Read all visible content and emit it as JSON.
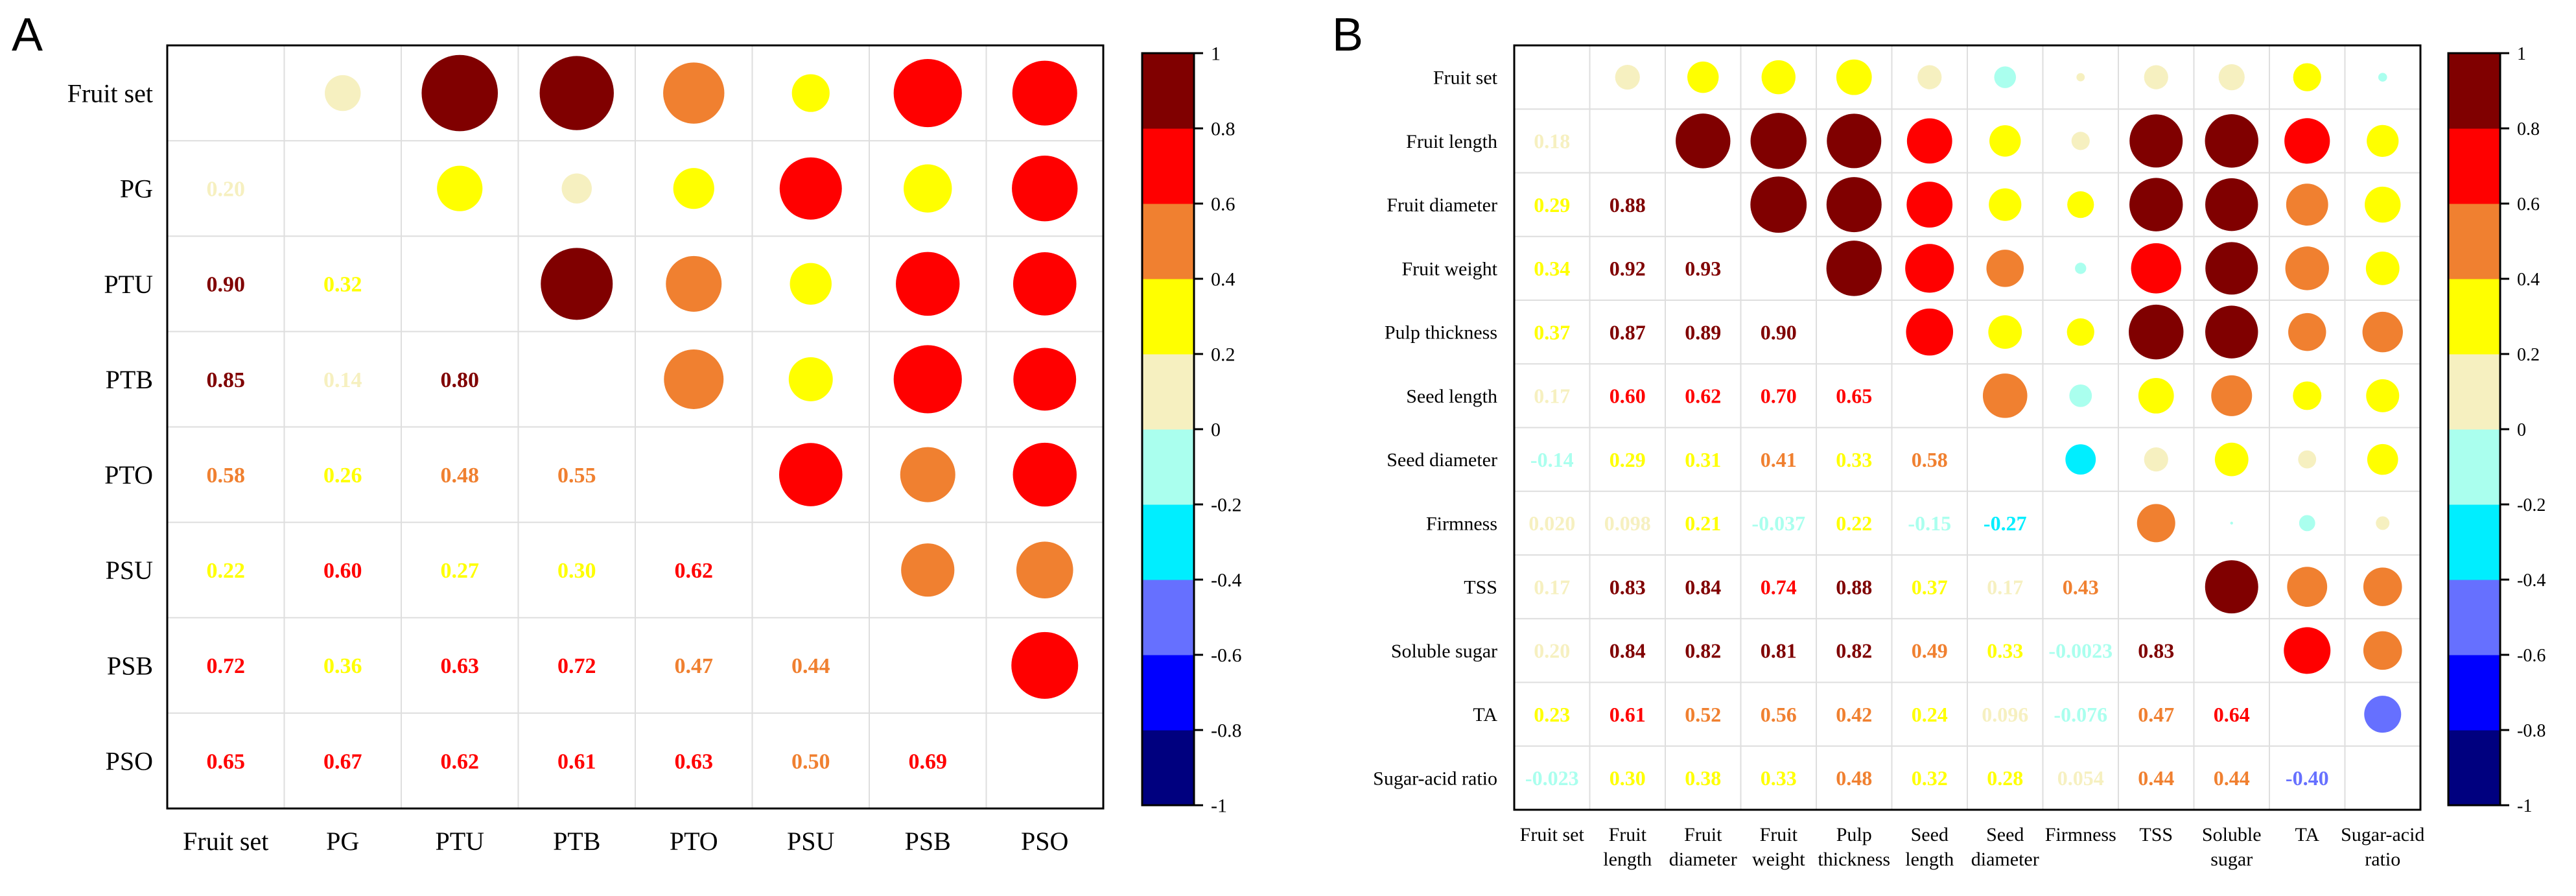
{
  "chart_data": [
    {
      "type": "heatmap",
      "panel": "A",
      "variables": [
        "Fruit set",
        "PG",
        "PTU",
        "PTB",
        "PTO",
        "PSU",
        "PSB",
        "PSO"
      ],
      "lower_labels": [
        [
          "",
          "",
          "",
          "",
          "",
          "",
          "",
          ""
        ],
        [
          "0.20",
          "",
          "",
          "",
          "",
          "",
          "",
          ""
        ],
        [
          "0.90",
          "0.32",
          "",
          "",
          "",
          "",
          "",
          ""
        ],
        [
          "0.85",
          "0.14",
          "0.80",
          "",
          "",
          "",
          "",
          ""
        ],
        [
          "0.58",
          "0.26",
          "0.48",
          "0.55",
          "",
          "",
          "",
          ""
        ],
        [
          "0.22",
          "0.60",
          "0.27",
          "0.30",
          "0.62",
          "",
          "",
          ""
        ],
        [
          "0.72",
          "0.36",
          "0.63",
          "0.72",
          "0.47",
          "0.44",
          "",
          ""
        ],
        [
          "0.65",
          "0.67",
          "0.62",
          "0.61",
          "0.63",
          "0.50",
          "0.69",
          ""
        ]
      ],
      "colorbar_ticks": [
        "1",
        "0.8",
        "0.6",
        "0.4",
        "0.2",
        "0",
        "-0.2",
        "-0.4",
        "-0.6",
        "-0.8",
        "-1"
      ],
      "range": [
        -1,
        1
      ]
    },
    {
      "type": "heatmap",
      "panel": "B",
      "row_labels": [
        "Fruit set",
        "Fruit length",
        "Fruit diameter",
        "Fruit weight",
        "Pulp thickness",
        "Seed length",
        "Seed diameter",
        "Firmness",
        "TSS",
        "Soluble sugar",
        "TA",
        "Sugar-acid ratio"
      ],
      "col_labels": [
        [
          "Fruit set"
        ],
        [
          "Fruit",
          "length"
        ],
        [
          "Fruit",
          "diameter"
        ],
        [
          "Fruit",
          "weight"
        ],
        [
          "Pulp",
          "thickness"
        ],
        [
          "Seed",
          "length"
        ],
        [
          "Seed",
          "diameter"
        ],
        [
          "Firmness"
        ],
        [
          "TSS"
        ],
        [
          "Soluble",
          "sugar"
        ],
        [
          "TA"
        ],
        [
          "Sugar-acid",
          "ratio"
        ]
      ],
      "lower_labels": [
        [
          "",
          "",
          "",
          "",
          "",
          "",
          "",
          "",
          "",
          "",
          "",
          ""
        ],
        [
          "0.18",
          "",
          "",
          "",
          "",
          "",
          "",
          "",
          "",
          "",
          "",
          ""
        ],
        [
          "0.29",
          "0.88",
          "",
          "",
          "",
          "",
          "",
          "",
          "",
          "",
          "",
          ""
        ],
        [
          "0.34",
          "0.92",
          "0.93",
          "",
          "",
          "",
          "",
          "",
          "",
          "",
          "",
          ""
        ],
        [
          "0.37",
          "0.87",
          "0.89",
          "0.90",
          "",
          "",
          "",
          "",
          "",
          "",
          "",
          ""
        ],
        [
          "0.17",
          "0.60",
          "0.62",
          "0.70",
          "0.65",
          "",
          "",
          "",
          "",
          "",
          "",
          ""
        ],
        [
          "-0.14",
          "0.29",
          "0.31",
          "0.41",
          "0.33",
          "0.58",
          "",
          "",
          "",
          "",
          "",
          ""
        ],
        [
          "0.020",
          "0.098",
          "0.21",
          "-0.037",
          "0.22",
          "-0.15",
          "-0.27",
          "",
          "",
          "",
          "",
          ""
        ],
        [
          "0.17",
          "0.83",
          "0.84",
          "0.74",
          "0.88",
          "0.37",
          "0.17",
          "0.43",
          "",
          "",
          "",
          ""
        ],
        [
          "0.20",
          "0.84",
          "0.82",
          "0.81",
          "0.82",
          "0.49",
          "0.33",
          "-0.0023",
          "0.83",
          "",
          "",
          ""
        ],
        [
          "0.23",
          "0.61",
          "0.52",
          "0.56",
          "0.42",
          "0.24",
          "0.096",
          "-0.076",
          "0.47",
          "0.64",
          "",
          ""
        ],
        [
          "-0.023",
          "0.30",
          "0.38",
          "0.33",
          "0.48",
          "0.32",
          "0.28",
          "0.054",
          "0.44",
          "0.44",
          "-0.40",
          ""
        ]
      ],
      "colorbar_ticks": [
        "1",
        "0.8",
        "0.6",
        "0.4",
        "0.2",
        "0",
        "-0.2",
        "-0.4",
        "-0.6",
        "-0.8",
        "-1"
      ],
      "range": [
        -1,
        1
      ]
    }
  ],
  "colors": [
    "#00007f",
    "#0000ff",
    "#6670ff",
    "#00eeff",
    "#aaffee",
    "#f6f0c0",
    "#ffff00",
    "#f08030",
    "#ff0000",
    "#800000"
  ]
}
